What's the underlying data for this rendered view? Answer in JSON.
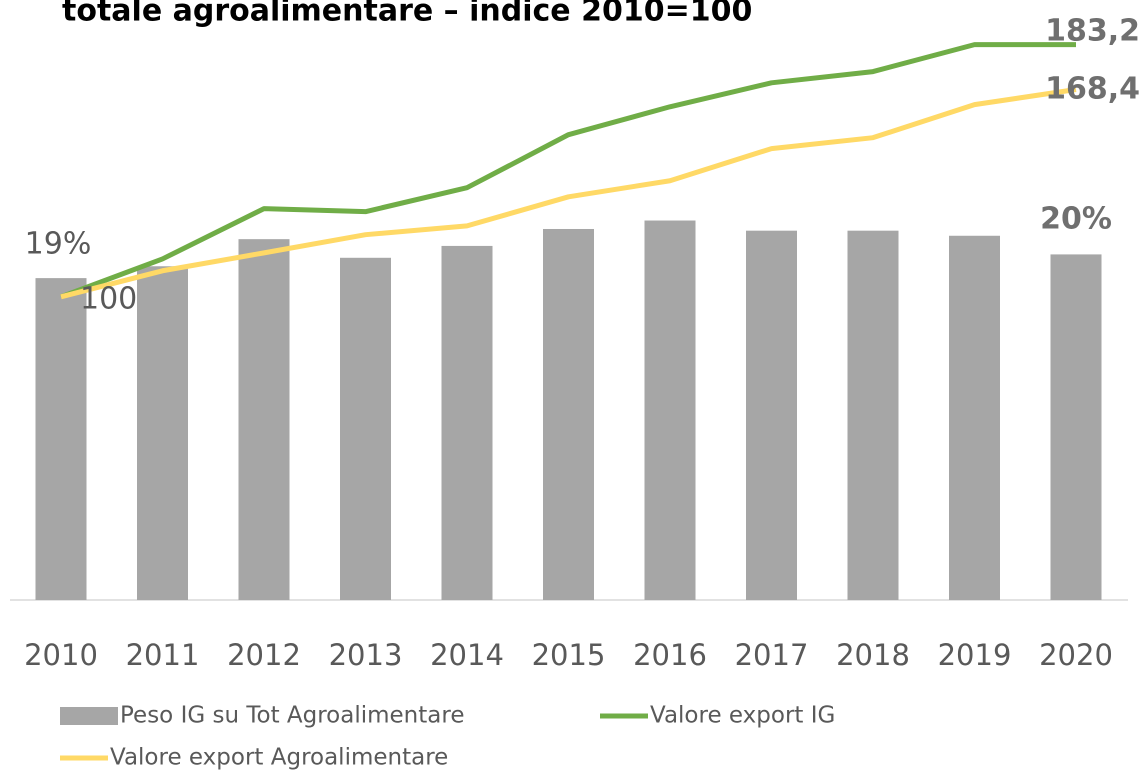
{
  "chart_data": {
    "type": "bar-line",
    "title": "totale agroalimentare – indice 2010=100",
    "categories": [
      "2010",
      "2011",
      "2012",
      "2013",
      "2014",
      "2015",
      "2016",
      "2017",
      "2018",
      "2019",
      "2020"
    ],
    "ylim": [
      0,
      34
    ],
    "y2lim": [
      0,
      190
    ],
    "series": [
      {
        "name": "Peso IG su Tot Agroalimentare",
        "type": "bar",
        "color": "#a6a6a6",
        "values": [
          19.0,
          19.7,
          21.3,
          20.2,
          20.9,
          21.9,
          22.4,
          21.8,
          21.8,
          21.5,
          20.4
        ],
        "value_labels": [
          "19%",
          null,
          null,
          null,
          null,
          null,
          null,
          null,
          null,
          null,
          "20%"
        ]
      },
      {
        "name": "Valore export IG",
        "type": "line",
        "axis": "y2",
        "color": "#70ad47",
        "values": [
          100,
          112.5,
          129.1,
          128.1,
          136.0,
          153.5,
          162.7,
          170.6,
          174.3,
          183.2,
          183.2
        ],
        "value_labels": [
          null,
          null,
          null,
          null,
          null,
          null,
          null,
          null,
          null,
          null,
          "183,2"
        ]
      },
      {
        "name": "Valore export Agroalimentare",
        "type": "line",
        "axis": "y2",
        "color": "#ffd966",
        "values": [
          100,
          108.6,
          114.5,
          120.5,
          123.4,
          133.0,
          138.3,
          148.9,
          152.5,
          163.4,
          168.4
        ],
        "value_labels": [
          "100",
          null,
          null,
          null,
          null,
          null,
          null,
          null,
          null,
          null,
          "168,4"
        ]
      }
    ]
  }
}
